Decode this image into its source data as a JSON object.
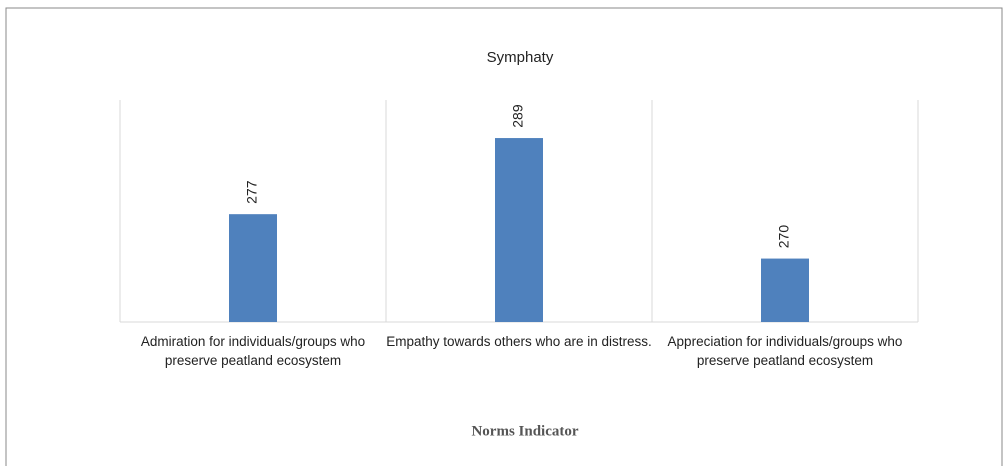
{
  "chart_data": {
    "type": "bar",
    "title": "Symphaty",
    "x_label": "Norms Indicator",
    "categories": [
      "Admiration for individuals/groups who preserve peatland ecosystem",
      "Empathy towards others who are in distress.",
      "Appreciation for individuals/groups who preserve peatland ecosystem"
    ],
    "values": [
      277,
      289,
      270
    ],
    "color": "#4f81bd",
    "ylim": [
      260,
      295
    ]
  }
}
